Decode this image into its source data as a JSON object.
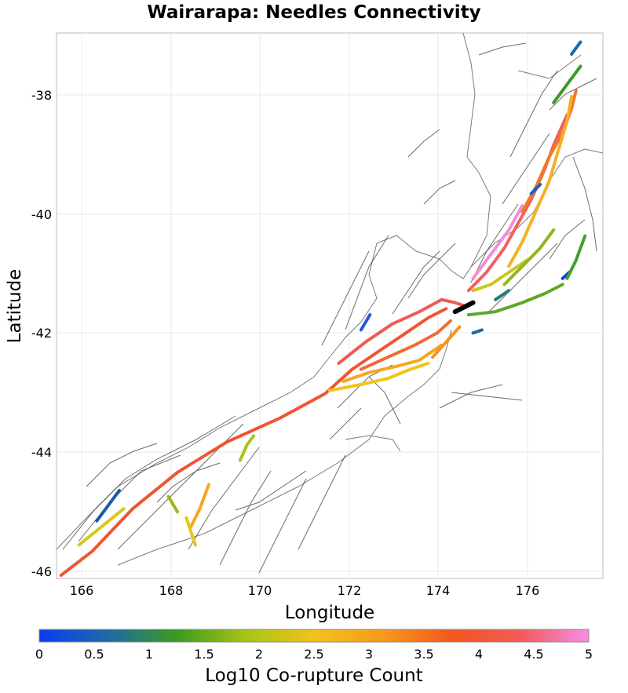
{
  "title": "Wairarapa: Needles Connectivity",
  "x_axis": {
    "label": "Longitude",
    "ticks": [
      "166",
      "168",
      "170",
      "172",
      "174",
      "176"
    ]
  },
  "y_axis": {
    "label": "Latitude",
    "ticks": [
      "-38",
      "-40",
      "-42",
      "-44",
      "-46"
    ]
  },
  "colorbar": {
    "label": "Log10 Co-rupture Count",
    "ticks": [
      "0",
      "0.5",
      "1",
      "1.5",
      "2",
      "2.5",
      "3",
      "3.5",
      "4",
      "4.5",
      "5"
    ],
    "min": 0,
    "max": 5,
    "stops": [
      "#0a3cf2",
      "#1e6aa8",
      "#3a9a1f",
      "#a6c41a",
      "#f2c31a",
      "#f79a1e",
      "#f2581e",
      "#f25a5a",
      "#f78ee6"
    ]
  },
  "source_fault": {
    "name": "Wairarapa",
    "color": "#000000"
  },
  "map_extent": {
    "lon": [
      165.5,
      177.7
    ],
    "lat": [
      -46.05,
      -37.05
    ]
  },
  "traces": [
    {
      "id": "alpine",
      "log10_count": 3.9,
      "color": "#ee5533",
      "points": [
        [
          165.6,
          -46.0
        ],
        [
          166.3,
          -45.6
        ],
        [
          167.2,
          -44.9
        ],
        [
          168.2,
          -44.3
        ],
        [
          169.3,
          -43.8
        ],
        [
          170.5,
          -43.4
        ],
        [
          171.5,
          -43.0
        ],
        [
          172.1,
          -42.6
        ],
        [
          172.7,
          -42.3
        ],
        [
          173.3,
          -42.0
        ],
        [
          173.8,
          -41.75
        ],
        [
          174.2,
          -41.6
        ]
      ]
    },
    {
      "id": "wairau",
      "log10_count": 4.1,
      "color": "#f05a55",
      "points": [
        [
          171.8,
          -42.5
        ],
        [
          172.4,
          -42.15
        ],
        [
          173.0,
          -41.85
        ],
        [
          173.6,
          -41.65
        ],
        [
          174.1,
          -41.45
        ],
        [
          174.4,
          -41.5
        ],
        [
          174.6,
          -41.55
        ]
      ]
    },
    {
      "id": "awatere",
      "log10_count": 3.7,
      "color": "#f06a38",
      "points": [
        [
          172.3,
          -42.6
        ],
        [
          172.9,
          -42.4
        ],
        [
          173.5,
          -42.2
        ],
        [
          174.0,
          -42.0
        ],
        [
          174.3,
          -41.8
        ]
      ]
    },
    {
      "id": "clarence",
      "log10_count": 2.9,
      "color": "#f5a623",
      "points": [
        [
          171.9,
          -42.8
        ],
        [
          172.5,
          -42.65
        ],
        [
          173.1,
          -42.55
        ],
        [
          173.6,
          -42.45
        ],
        [
          174.1,
          -42.2
        ]
      ]
    },
    {
      "id": "hope",
      "log10_count": 2.6,
      "color": "#f2c31a",
      "points": [
        [
          171.6,
          -42.95
        ],
        [
          172.3,
          -42.85
        ],
        [
          172.9,
          -42.75
        ],
        [
          173.4,
          -42.6
        ],
        [
          173.8,
          -42.5
        ]
      ]
    },
    {
      "id": "kekerengu",
      "log10_count": 3.3,
      "color": "#f7931e",
      "points": [
        [
          173.9,
          -42.4
        ],
        [
          174.2,
          -42.15
        ],
        [
          174.5,
          -41.9
        ]
      ]
    },
    {
      "id": "wellington",
      "log10_count": 4.3,
      "color": "#f26060",
      "points": [
        [
          174.7,
          -41.3
        ],
        [
          175.1,
          -41.0
        ],
        [
          175.5,
          -40.6
        ],
        [
          175.8,
          -40.2
        ],
        [
          176.1,
          -39.8
        ],
        [
          176.4,
          -39.3
        ],
        [
          176.6,
          -38.9
        ],
        [
          176.9,
          -38.4
        ]
      ]
    },
    {
      "id": "ohariu",
      "log10_count": 4.8,
      "color": "#f48fd6",
      "points": [
        [
          174.8,
          -41.1
        ],
        [
          175.2,
          -40.7
        ],
        [
          175.6,
          -40.3
        ],
        [
          175.9,
          -39.9
        ]
      ]
    },
    {
      "id": "mohaka",
      "log10_count": 3.6,
      "color": "#f07a2a",
      "points": [
        [
          175.9,
          -40.0
        ],
        [
          176.2,
          -39.6
        ],
        [
          176.5,
          -39.1
        ],
        [
          176.8,
          -38.7
        ],
        [
          177.0,
          -38.3
        ],
        [
          177.1,
          -38.0
        ]
      ]
    },
    {
      "id": "ruahine",
      "log10_count": 2.8,
      "color": "#f5b026",
      "points": [
        [
          175.6,
          -40.9
        ],
        [
          175.9,
          -40.5
        ],
        [
          176.2,
          -40.0
        ],
        [
          176.5,
          -39.5
        ],
        [
          176.7,
          -39.0
        ],
        [
          176.9,
          -38.5
        ],
        [
          177.0,
          -38.1
        ]
      ]
    },
    {
      "id": "wairarapa-east",
      "log10_count": 1.4,
      "color": "#5ea82a",
      "points": [
        [
          174.7,
          -41.7
        ],
        [
          175.3,
          -41.65
        ],
        [
          175.9,
          -41.5
        ],
        [
          176.4,
          -41.35
        ],
        [
          176.8,
          -41.2
        ]
      ]
    },
    {
      "id": "taranaki-arc",
      "log10_count": 2.2,
      "color": "#c8c81e",
      "points": [
        [
          174.8,
          -41.3
        ],
        [
          175.2,
          -41.2
        ],
        [
          175.6,
          -41.0
        ],
        [
          176.0,
          -40.8
        ]
      ]
    },
    {
      "id": "n-lean",
      "log10_count": 1.8,
      "color": "#8fb81c",
      "points": [
        [
          175.5,
          -41.2
        ],
        [
          175.9,
          -40.9
        ],
        [
          176.3,
          -40.6
        ],
        [
          176.6,
          -40.3
        ]
      ]
    },
    {
      "id": "ne-green",
      "log10_count": 1.1,
      "color": "#3f9a24",
      "points": [
        [
          176.6,
          -38.2
        ],
        [
          176.9,
          -37.9
        ],
        [
          177.2,
          -37.6
        ]
      ]
    },
    {
      "id": "ne-blue",
      "log10_count": 0.5,
      "color": "#1e6aa8",
      "points": [
        [
          177.0,
          -37.4
        ],
        [
          177.2,
          -37.2
        ]
      ]
    },
    {
      "id": "sw-blue",
      "log10_count": 0.3,
      "color": "#1a5aa8",
      "points": [
        [
          166.4,
          -45.1
        ],
        [
          166.6,
          -44.9
        ],
        [
          166.9,
          -44.6
        ]
      ]
    },
    {
      "id": "sw-yellow",
      "log10_count": 2.3,
      "color": "#d8c81c",
      "points": [
        [
          166.0,
          -45.5
        ],
        [
          166.5,
          -45.2
        ],
        [
          167.0,
          -44.9
        ]
      ]
    },
    {
      "id": "sw-lime",
      "log10_count": 1.7,
      "color": "#9ab81c",
      "points": [
        [
          168.0,
          -44.7
        ],
        [
          168.2,
          -44.95
        ]
      ]
    },
    {
      "id": "sw-orange",
      "log10_count": 2.9,
      "color": "#f5a623",
      "points": [
        [
          168.5,
          -45.2
        ],
        [
          168.7,
          -44.9
        ],
        [
          168.9,
          -44.5
        ]
      ]
    },
    {
      "id": "sw-yellow2",
      "log10_count": 2.4,
      "color": "#e2c61c",
      "points": [
        [
          168.4,
          -45.05
        ],
        [
          168.6,
          -45.5
        ]
      ]
    },
    {
      "id": "hanmer-lime",
      "log10_count": 1.8,
      "color": "#a6c41a",
      "points": [
        [
          169.6,
          -44.1
        ],
        [
          169.75,
          -43.85
        ],
        [
          169.9,
          -43.7
        ]
      ]
    },
    {
      "id": "marlb-blue",
      "log10_count": 0.4,
      "color": "#1e5ad8",
      "points": [
        [
          172.3,
          -41.95
        ],
        [
          172.5,
          -41.7
        ]
      ]
    },
    {
      "id": "cook-blue",
      "log10_count": 0.6,
      "color": "#1e6aa8",
      "points": [
        [
          174.8,
          -42.0
        ],
        [
          175.0,
          -41.95
        ]
      ]
    },
    {
      "id": "east-blue",
      "log10_count": 0.2,
      "color": "#1040e8",
      "points": [
        [
          176.8,
          -41.1
        ],
        [
          176.95,
          -41.0
        ]
      ]
    },
    {
      "id": "east-green",
      "log10_count": 1.2,
      "color": "#42a030",
      "points": [
        [
          176.9,
          -41.1
        ],
        [
          177.1,
          -40.8
        ],
        [
          177.3,
          -40.4
        ]
      ]
    },
    {
      "id": "east-teal",
      "log10_count": 0.8,
      "color": "#2a7a78",
      "points": [
        [
          175.3,
          -41.45
        ],
        [
          175.6,
          -41.3
        ]
      ]
    },
    {
      "id": "bop-blue",
      "log10_count": 0.5,
      "color": "#2060b0",
      "points": [
        [
          176.1,
          -39.7
        ],
        [
          176.3,
          -39.55
        ]
      ]
    },
    {
      "id": "wairarapa",
      "log10_count": 5.0,
      "color": "#000000",
      "points": [
        [
          174.4,
          -41.65
        ],
        [
          174.8,
          -41.5
        ]
      ]
    }
  ]
}
